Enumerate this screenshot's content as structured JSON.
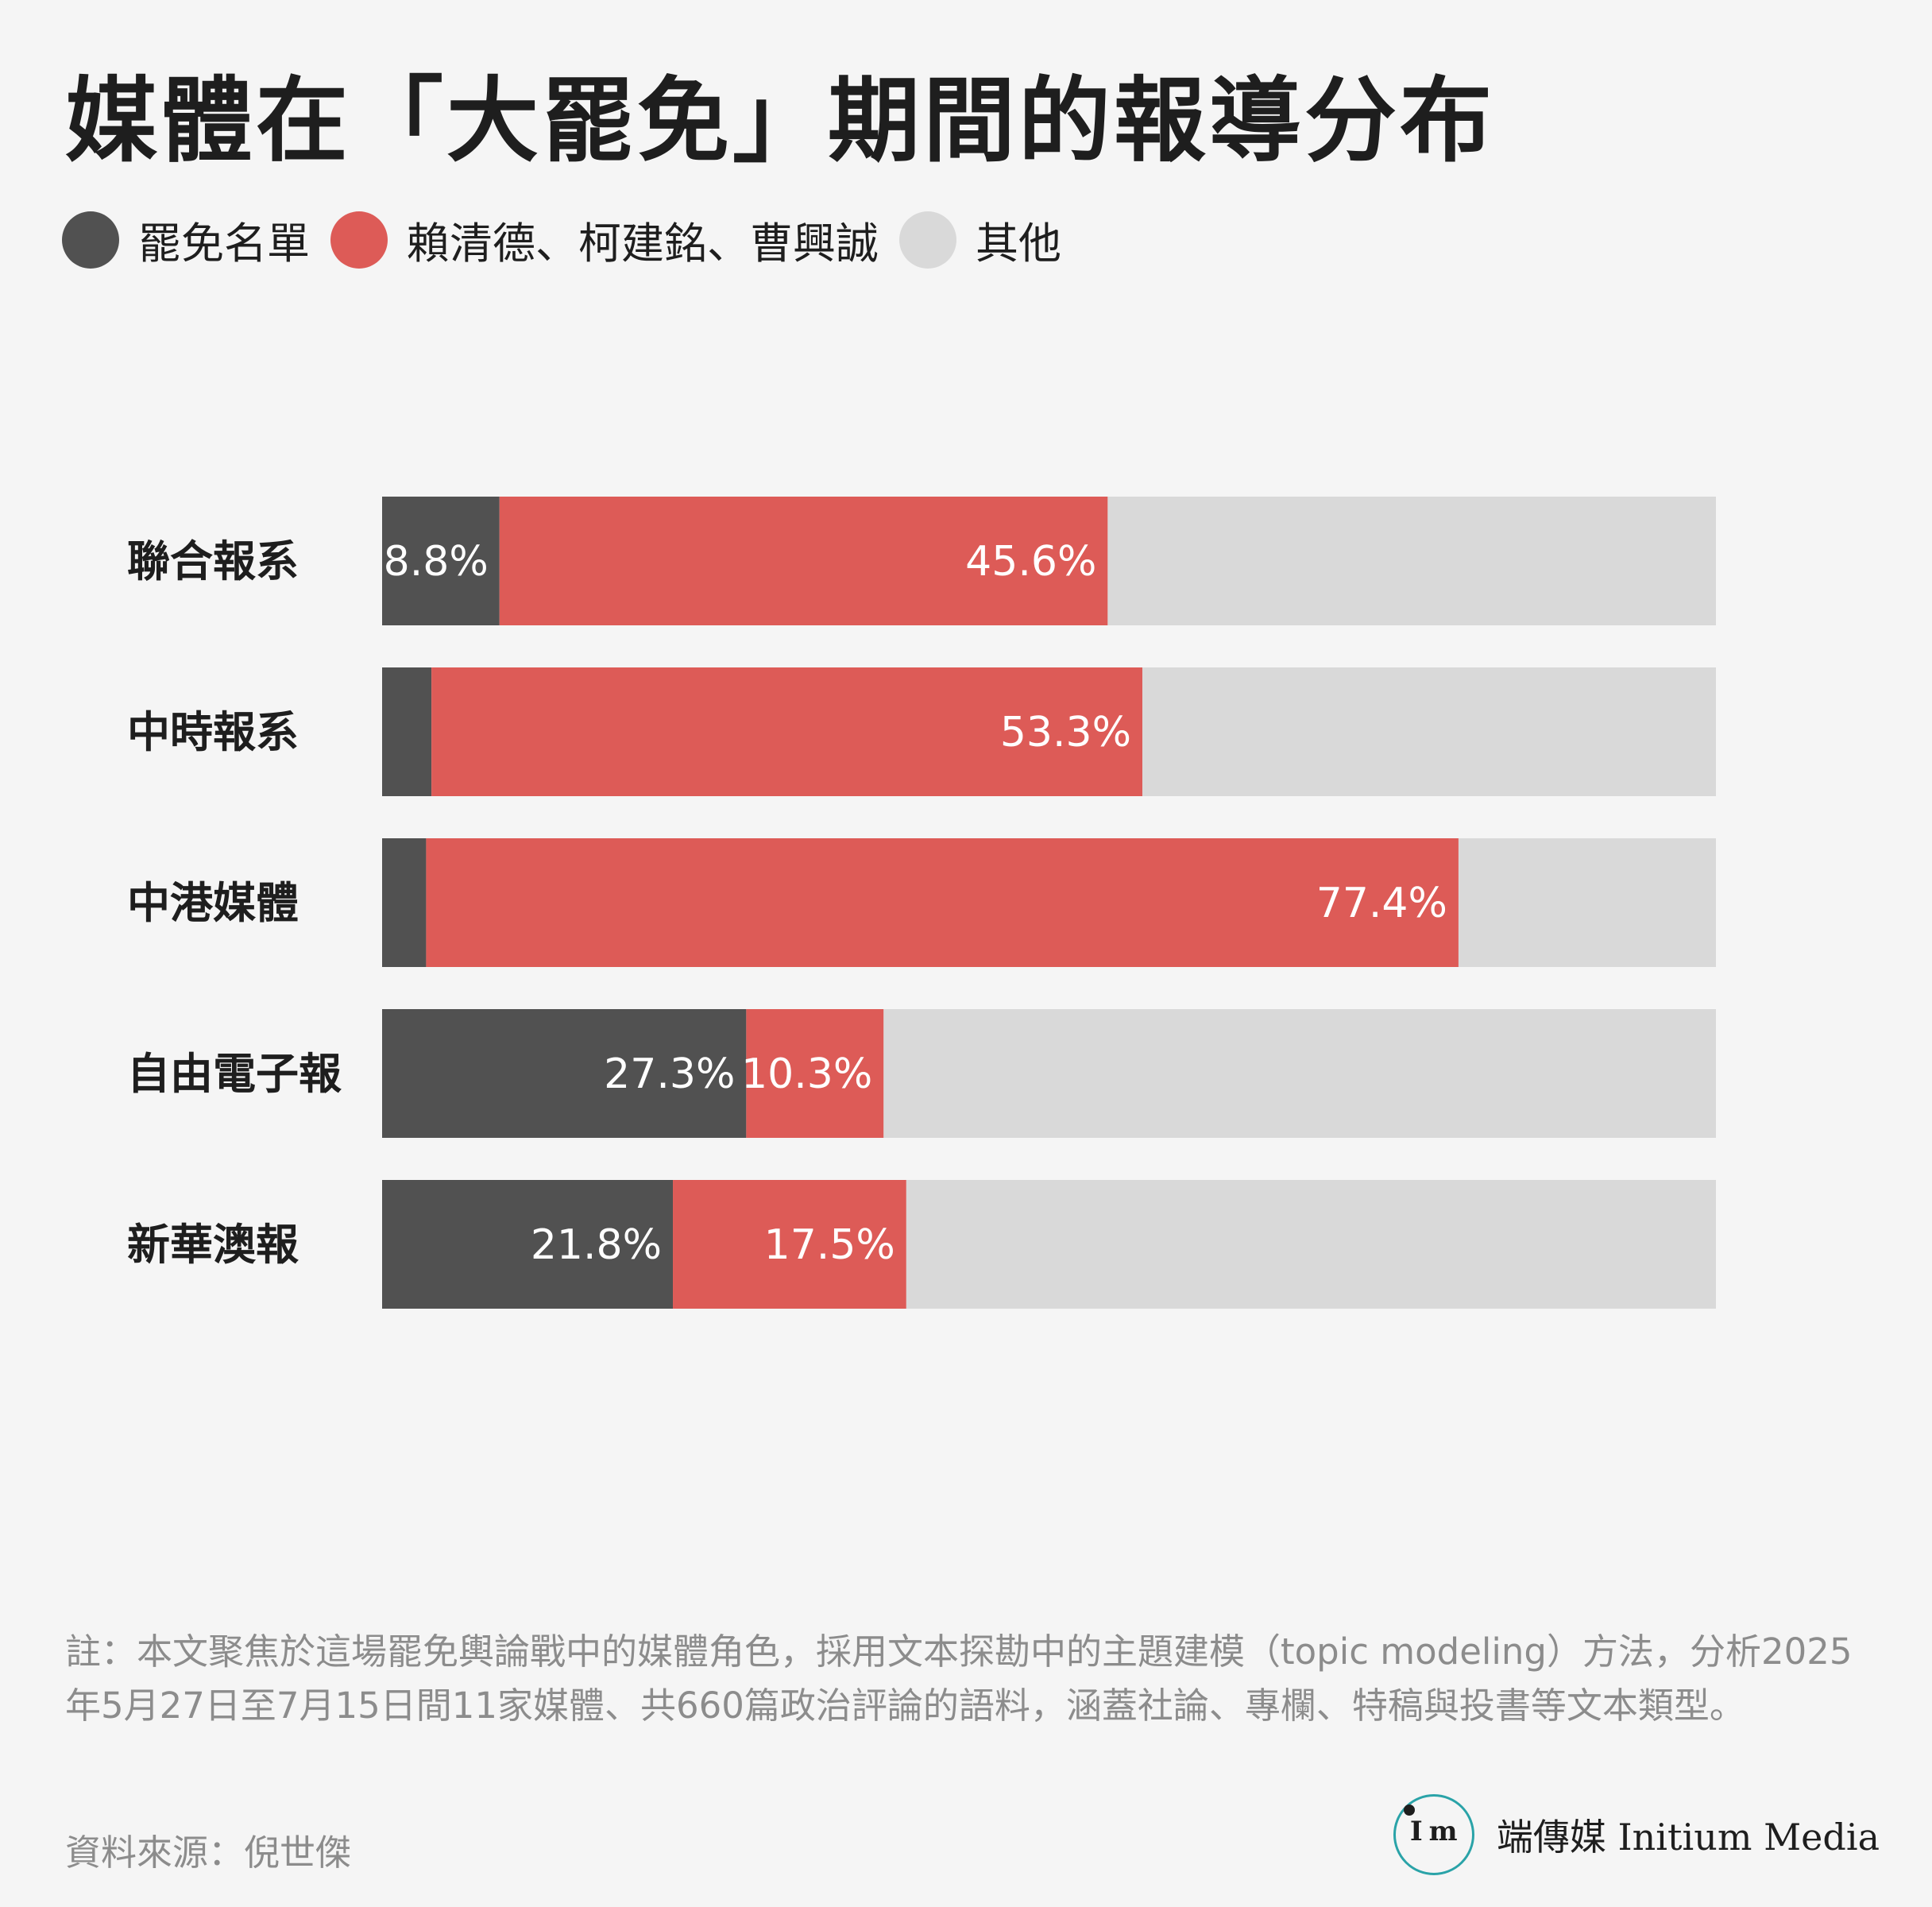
{
  "colors": {
    "recall_list": "#515151",
    "lai_ko_tsao": "#dd5b57",
    "other": "#d9d9d9",
    "background": "#f5f5f5"
  },
  "chart_data": {
    "type": "bar",
    "orientation": "horizontal",
    "stacked": true,
    "title": "媒體在「大罷免」期間的報導分布",
    "legend_position": "top-left",
    "grid": false,
    "categories": [
      "聯合報系",
      "中時報系",
      "中港媒體",
      "自由電子報",
      "新華澳報"
    ],
    "series": [
      {
        "name": "罷免名單",
        "values": [
          8.8,
          3.7,
          3.3,
          27.3,
          21.8
        ],
        "labels": [
          "8.8%",
          "",
          "",
          "27.3%",
          "21.8%"
        ]
      },
      {
        "name": "賴清德、柯建銘、曹興誠",
        "values": [
          45.6,
          53.3,
          77.4,
          10.3,
          17.5
        ],
        "labels": [
          "45.6%",
          "53.3%",
          "77.4%",
          "10.3%",
          "17.5%"
        ]
      },
      {
        "name": "其他",
        "values": [
          45.6,
          43.0,
          19.3,
          62.4,
          60.7
        ],
        "labels": [
          "",
          "",
          "",
          "",
          ""
        ]
      }
    ],
    "xlim": [
      0,
      100
    ]
  },
  "note": "註：本文聚焦於這場罷免輿論戰中的媒體角色，採用文本探勘中的主題建模（topic modeling）方法，分析2025年5月27日至7月15日間11家媒體、共660篇政治評論的語料，涵蓋社論、專欄、特稿與投書等文本類型。",
  "source": "資料來源：倪世傑",
  "brand": {
    "logo_icon": "initium-logo-icon",
    "name": "端傳媒 Initium Media"
  }
}
